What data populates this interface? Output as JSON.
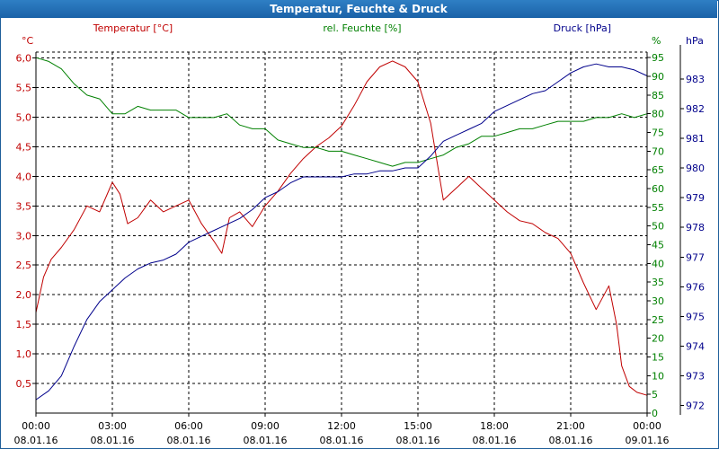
{
  "window": {
    "title": "Temperatur, Feuchte & Druck"
  },
  "colors": {
    "temperature": "#c00000",
    "humidity": "#008000",
    "pressure": "#00008b",
    "grid": "#000000",
    "titlebar": "#1a62a8"
  },
  "chart_data": {
    "type": "line",
    "title": "Temperatur, Feuchte & Druck",
    "x_ticks": [
      {
        "time": "00:00",
        "date": "08.01.16"
      },
      {
        "time": "03:00",
        "date": "08.01.16"
      },
      {
        "time": "06:00",
        "date": "08.01.16"
      },
      {
        "time": "09:00",
        "date": "08.01.16"
      },
      {
        "time": "12:00",
        "date": "08.01.16"
      },
      {
        "time": "15:00",
        "date": "08.01.16"
      },
      {
        "time": "18:00",
        "date": "08.01.16"
      },
      {
        "time": "21:00",
        "date": "08.01.16"
      },
      {
        "time": "00:00",
        "date": "09.01.16"
      }
    ],
    "xlim": [
      0,
      24
    ],
    "axes": {
      "temperature": {
        "label": "Temperatur [°C]",
        "unit": "°C",
        "ylim": [
          0,
          6.1
        ],
        "ticks": [
          "0,5",
          "1,0",
          "1,5",
          "2,0",
          "2,5",
          "3,0",
          "3,5",
          "4,0",
          "4,5",
          "5,0",
          "5,5",
          "6,0"
        ]
      },
      "humidity": {
        "label": "rel. Feuchte [%]",
        "unit": "%",
        "ylim": [
          0,
          96.5
        ],
        "ticks": [
          "0",
          "5",
          "10",
          "15",
          "20",
          "25",
          "30",
          "35",
          "40",
          "45",
          "50",
          "55",
          "60",
          "65",
          "70",
          "75",
          "80",
          "85",
          "90",
          "95"
        ]
      },
      "pressure": {
        "label": "Druck [hPa]",
        "unit": "hPa",
        "ylim": [
          971.75,
          983.9
        ],
        "ticks": [
          "972",
          "973",
          "974",
          "975",
          "976",
          "977",
          "978",
          "979",
          "980",
          "981",
          "982",
          "983"
        ]
      }
    },
    "series": [
      {
        "name": "Temperatur",
        "axis": "temperature",
        "x": [
          0,
          0.3,
          0.6,
          1,
          1.5,
          2,
          2.5,
          3,
          3.3,
          3.6,
          4,
          4.5,
          5,
          5.5,
          6,
          6.5,
          7,
          7.3,
          7.6,
          8,
          8.5,
          9,
          9.5,
          10,
          10.5,
          11,
          11.5,
          12,
          12.5,
          13,
          13.5,
          14,
          14.5,
          15,
          15.5,
          16,
          16.5,
          17,
          17.5,
          18,
          18.5,
          19,
          19.5,
          20,
          20.5,
          21,
          21.5,
          22,
          22.5,
          22.8,
          23,
          23.3,
          23.6,
          24
        ],
        "values": [
          1.7,
          2.3,
          2.6,
          2.8,
          3.1,
          3.5,
          3.4,
          3.9,
          3.7,
          3.2,
          3.3,
          3.6,
          3.4,
          3.5,
          3.6,
          3.2,
          2.9,
          2.7,
          3.3,
          3.4,
          3.15,
          3.5,
          3.75,
          4.05,
          4.3,
          4.5,
          4.65,
          4.85,
          5.2,
          5.6,
          5.85,
          5.95,
          5.85,
          5.6,
          4.9,
          3.6,
          3.8,
          4.0,
          3.8,
          3.6,
          3.4,
          3.25,
          3.2,
          3.05,
          2.95,
          2.7,
          2.2,
          1.75,
          2.15,
          1.5,
          0.8,
          0.45,
          0.35,
          0.3
        ]
      },
      {
        "name": "rel. Feuchte",
        "axis": "humidity",
        "x": [
          0,
          0.5,
          1,
          1.5,
          2,
          2.5,
          3,
          3.5,
          4,
          4.5,
          5,
          5.5,
          6,
          6.5,
          7,
          7.5,
          8,
          8.5,
          9,
          9.5,
          10,
          10.5,
          11,
          11.5,
          12,
          12.5,
          13,
          13.5,
          14,
          14.5,
          15,
          15.5,
          16,
          16.5,
          17,
          17.5,
          18,
          18.5,
          19,
          19.5,
          20,
          20.5,
          21,
          21.5,
          22,
          22.5,
          23,
          23.5,
          24
        ],
        "values": [
          95,
          94,
          92,
          88,
          85,
          84,
          80,
          80,
          82,
          81,
          81,
          81,
          79,
          79,
          79,
          80,
          77,
          76,
          76,
          73,
          72,
          71,
          71,
          70,
          70,
          69,
          68,
          67,
          66,
          67,
          67,
          68,
          69,
          71,
          72,
          74,
          74,
          75,
          76,
          76,
          77,
          78,
          78,
          78,
          79,
          79,
          80,
          79,
          80
        ]
      },
      {
        "name": "Druck",
        "axis": "pressure",
        "x": [
          0,
          0.5,
          1,
          1.5,
          2,
          2.5,
          3,
          3.5,
          4,
          4.5,
          5,
          5.5,
          6,
          6.5,
          7,
          7.5,
          8,
          8.5,
          9,
          9.5,
          10,
          10.5,
          11,
          11.5,
          12,
          12.5,
          13,
          13.5,
          14,
          14.5,
          15,
          15.5,
          16,
          16.5,
          17,
          17.5,
          18,
          18.5,
          19,
          19.5,
          20,
          20.5,
          21,
          21.5,
          22,
          22.5,
          23,
          23.5,
          24
        ],
        "values": [
          972.2,
          972.5,
          973.0,
          974.0,
          974.9,
          975.5,
          975.9,
          976.3,
          976.6,
          976.8,
          976.9,
          977.1,
          977.5,
          977.7,
          977.9,
          978.1,
          978.3,
          978.6,
          979.0,
          979.2,
          979.5,
          979.7,
          979.7,
          979.7,
          979.7,
          979.8,
          979.8,
          979.9,
          979.9,
          980.0,
          980.0,
          980.4,
          980.9,
          981.1,
          981.3,
          981.5,
          981.9,
          982.1,
          982.3,
          982.5,
          982.6,
          982.9,
          983.2,
          983.4,
          983.5,
          983.4,
          983.4,
          983.3,
          983.1
        ]
      }
    ]
  }
}
